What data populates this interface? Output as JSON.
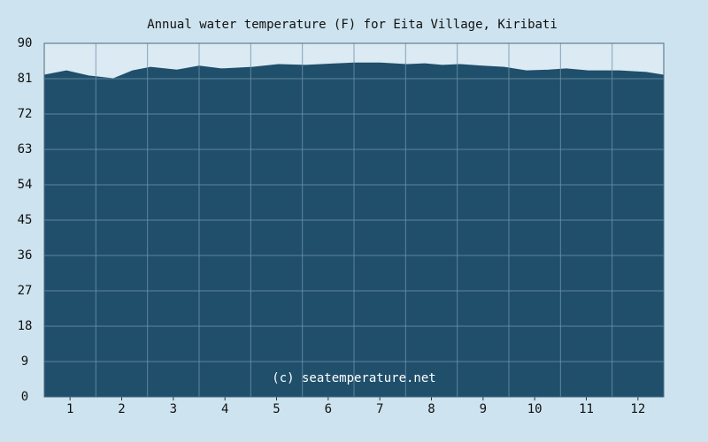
{
  "chart_data": {
    "type": "area",
    "title": "Annual water temperature (F) for Eita Village, Kiribati",
    "annotation": "(c) seatemperature.net",
    "x": [
      0.5,
      0.93,
      1.36,
      1.84,
      2.21,
      2.56,
      3.07,
      3.5,
      3.93,
      4.53,
      5.04,
      5.56,
      6.16,
      6.5,
      7.01,
      7.53,
      7.87,
      8.21,
      8.56,
      8.99,
      9.41,
      9.84,
      10.27,
      10.61,
      11.04,
      11.64,
      12.16,
      12.5
    ],
    "values": [
      81.9,
      83.0,
      81.7,
      81.0,
      83.0,
      83.9,
      83.2,
      84.2,
      83.5,
      83.9,
      84.6,
      84.4,
      84.8,
      85.0,
      85.0,
      84.6,
      84.8,
      84.4,
      84.6,
      84.2,
      83.9,
      83.0,
      83.2,
      83.5,
      83.0,
      83.0,
      82.6,
      81.9
    ],
    "color": "#1f4f6b",
    "xlim": [
      0.5,
      12.5
    ],
    "xticks": [
      1,
      2,
      3,
      4,
      5,
      6,
      7,
      8,
      9,
      10,
      11,
      12
    ],
    "ylim": [
      0,
      90
    ],
    "yticks": [
      0,
      9,
      18,
      27,
      36,
      45,
      54,
      63,
      72,
      81,
      90
    ],
    "grid": true
  }
}
